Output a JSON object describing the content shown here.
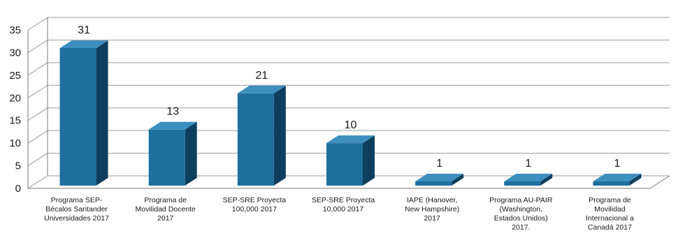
{
  "chart_data": {
    "type": "bar",
    "categories": [
      [
        "Programa SEP-",
        "Bécalos Santander",
        "Universidades 2017"
      ],
      [
        "Programa de",
        "Movilidad Docente",
        "2017"
      ],
      [
        "SEP-SRE Proyecta",
        "100,000 2017"
      ],
      [
        "SEP-SRE Proyecta",
        "10,000 2017"
      ],
      [
        "IAPE (Hanover,",
        "New Hampshire)",
        "2017"
      ],
      [
        "Programa AU-PAIR",
        "(Washington,",
        "Estados Unidos)",
        "2017."
      ],
      [
        "Programa de",
        "Movilidad",
        "Internacional a",
        "Canadá 2017"
      ]
    ],
    "values": [
      31,
      13,
      21,
      10,
      1,
      1,
      1
    ],
    "ylim": [
      0,
      35
    ],
    "yticks": [
      0,
      5,
      10,
      15,
      20,
      25,
      30,
      35
    ],
    "grid": true,
    "three_d": true,
    "colors": {
      "bar_front": "#1f6f9e",
      "bar_side": "#0f3f5e",
      "bar_top": "#3d8fbf",
      "grid": "#9a9a9a"
    },
    "title": "",
    "xlabel": "",
    "ylabel": ""
  }
}
